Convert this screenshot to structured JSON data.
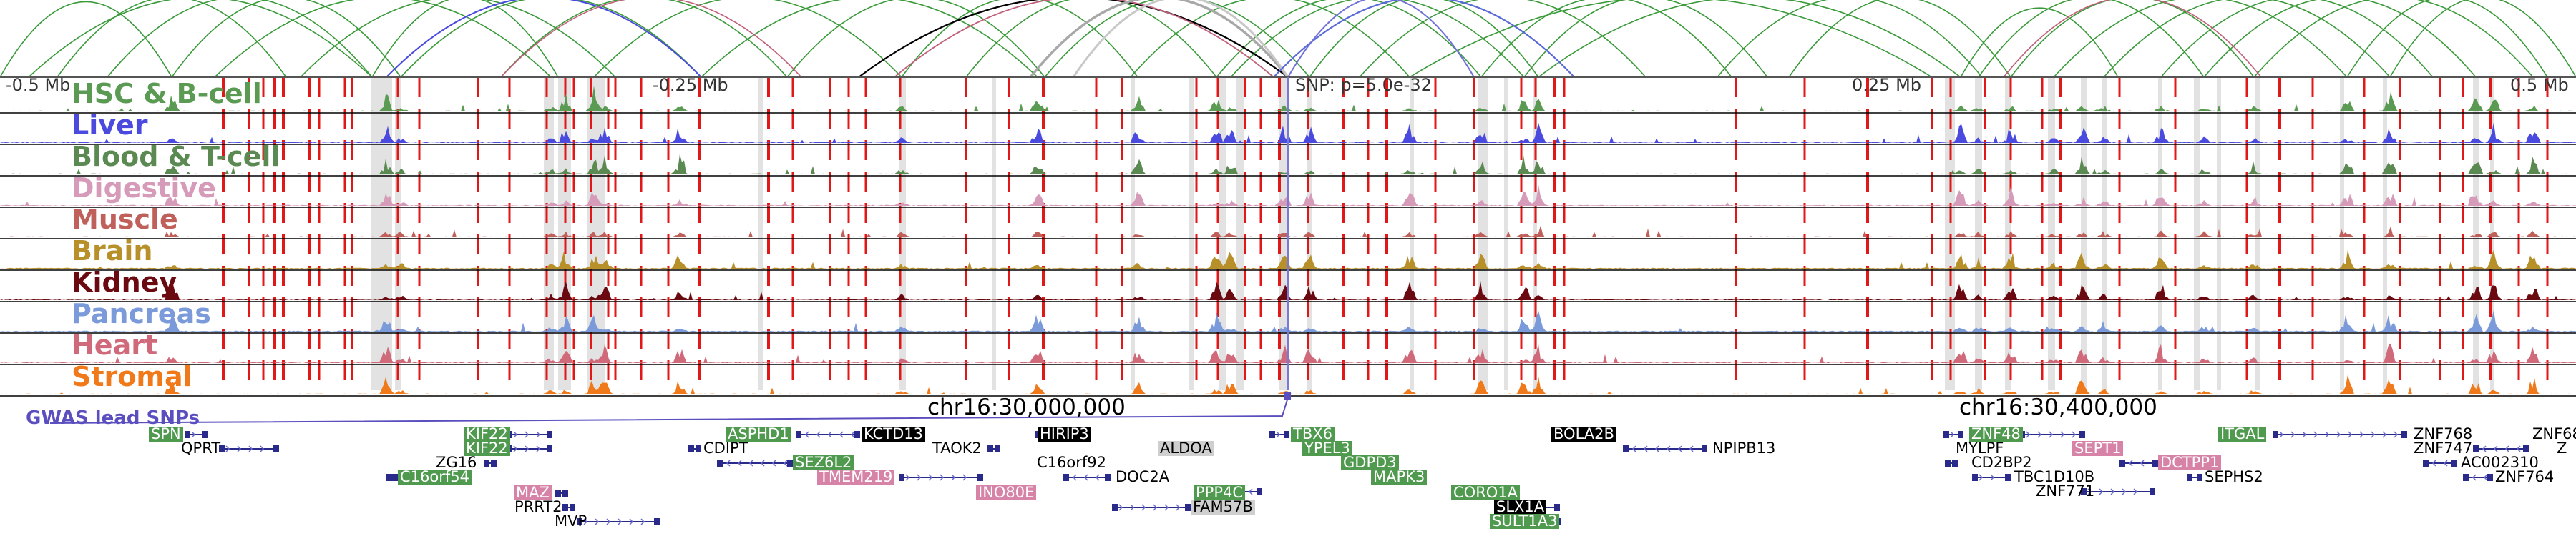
{
  "axis": {
    "left_label": "-0.5 Mb",
    "mid_left_label": "-0.25 Mb",
    "snp_label": "SNP: p=5.0e-32",
    "mid_right_label": "0.25 Mb",
    "right_label": "0.5 Mb"
  },
  "tracks": [
    {
      "name": "HSC & B-cell",
      "color": "#5a9a52"
    },
    {
      "name": "Liver",
      "color": "#4a4adf"
    },
    {
      "name": "Blood & T-cell",
      "color": "#5a8a52"
    },
    {
      "name": "Digestive",
      "color": "#d69bb8"
    },
    {
      "name": "Muscle",
      "color": "#c0605a"
    },
    {
      "name": "Brain",
      "color": "#b8902a"
    },
    {
      "name": "Kidney",
      "color": "#6a0a10"
    },
    {
      "name": "Pancreas",
      "color": "#7a9ada"
    },
    {
      "name": "Heart",
      "color": "#d06a7a"
    },
    {
      "name": "Stromal",
      "color": "#f07a1a"
    }
  ],
  "chromosome": {
    "label_1": "chr16:30,000,000",
    "label_2": "chr16:30,400,000"
  },
  "gwas": {
    "label": "GWAS lead SNPs",
    "color": "#5b4fbf"
  },
  "genes": [
    {
      "name": "SPN",
      "style": "green"
    },
    {
      "name": "QPRT",
      "style": "plain"
    },
    {
      "name": "KIF22",
      "style": "green"
    },
    {
      "name": "KIF22",
      "style": "green"
    },
    {
      "name": "ZG16",
      "style": "plain"
    },
    {
      "name": "C16orf54",
      "style": "green"
    },
    {
      "name": "MAZ",
      "style": "pink"
    },
    {
      "name": "PRRT2",
      "style": "plain"
    },
    {
      "name": "MVP",
      "style": "plain"
    },
    {
      "name": "ASPHD1",
      "style": "green"
    },
    {
      "name": "KCTD13",
      "style": "black"
    },
    {
      "name": "CDIPT",
      "style": "plain"
    },
    {
      "name": "SEZ6L2",
      "style": "green"
    },
    {
      "name": "TMEM219",
      "style": "pink"
    },
    {
      "name": "TAOK2",
      "style": "plain"
    },
    {
      "name": "HIRIP3",
      "style": "black"
    },
    {
      "name": "INO80E",
      "style": "pink"
    },
    {
      "name": "C16orf92",
      "style": "plain"
    },
    {
      "name": "DOC2A",
      "style": "plain"
    },
    {
      "name": "ALDOA",
      "style": "grey"
    },
    {
      "name": "PPP4C",
      "style": "green"
    },
    {
      "name": "FAM57B",
      "style": "grey"
    },
    {
      "name": "TBX6",
      "style": "green"
    },
    {
      "name": "YPEL3",
      "style": "green"
    },
    {
      "name": "GDPD3",
      "style": "green"
    },
    {
      "name": "MAPK3",
      "style": "green"
    },
    {
      "name": "CORO1A",
      "style": "green"
    },
    {
      "name": "SLX1A",
      "style": "black"
    },
    {
      "name": "SULT1A3",
      "style": "green"
    },
    {
      "name": "BOLA2B",
      "style": "black"
    },
    {
      "name": "NPIPB13",
      "style": "plain"
    },
    {
      "name": "ZNF48",
      "style": "green"
    },
    {
      "name": "MYLPF",
      "style": "plain"
    },
    {
      "name": "SEPT1",
      "style": "pink"
    },
    {
      "name": "CD2BP2",
      "style": "plain"
    },
    {
      "name": "TBC1D10B",
      "style": "plain"
    },
    {
      "name": "ZNF771",
      "style": "plain"
    },
    {
      "name": "DCTPP1",
      "style": "pink"
    },
    {
      "name": "SEPHS2",
      "style": "plain"
    },
    {
      "name": "ITGAL",
      "style": "green"
    },
    {
      "name": "ZNF768",
      "style": "plain"
    },
    {
      "name": "ZNF747",
      "style": "plain"
    },
    {
      "name": "AC002310",
      "style": "plain"
    },
    {
      "name": "ZNF764",
      "style": "plain"
    },
    {
      "name": "ZNF68",
      "style": "plain"
    },
    {
      "name": "Z",
      "style": "plain"
    }
  ]
}
